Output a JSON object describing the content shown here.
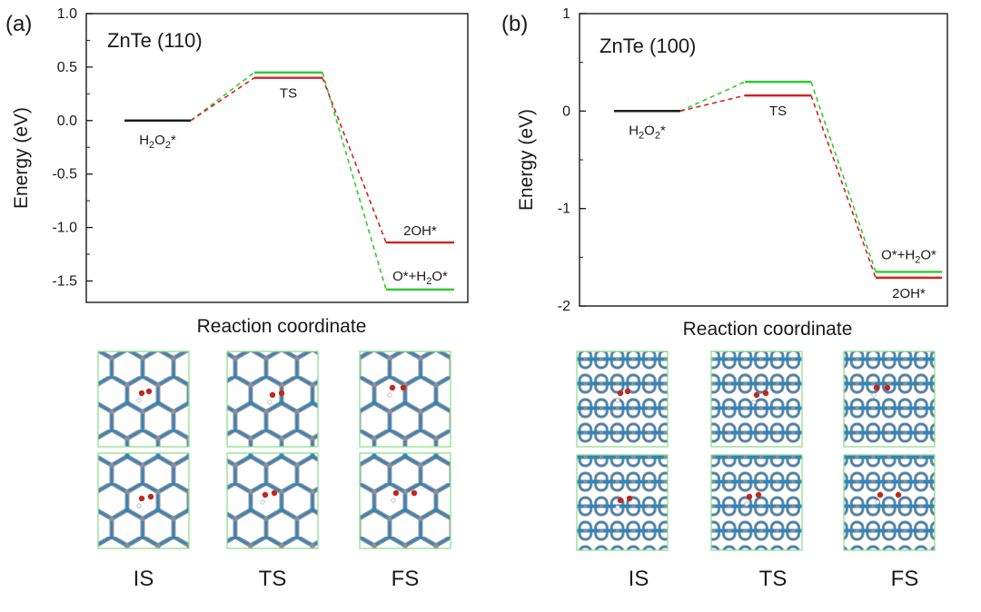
{
  "colors": {
    "green": "#2ecc2e",
    "red": "#d62020",
    "black": "#1a1a1a",
    "atom_blue": "#2f86b8",
    "atom_grey": "#8d8d9c",
    "frame_green": "#8fe08f",
    "oxygen_red": "#c0281e"
  },
  "panels": [
    {
      "letter": "(a)",
      "title": "ZnTe (110)",
      "xlabel": "Reaction coordinate",
      "ylabel": "Energy (eV)",
      "ylim": [
        -1.7,
        1.0
      ],
      "yticks": [
        "1.0",
        "0.5",
        "0.0",
        "-0.5",
        "-1.0",
        "-1.5"
      ],
      "ytick_values": [
        1.0,
        0.5,
        0.0,
        -0.5,
        -1.0,
        -1.5
      ],
      "levels": [
        {
          "label_main": "H",
          "sub1": "2",
          "mid": "O",
          "sub2": "2",
          "tail": "*",
          "value": 0.0
        },
        {
          "label": "TS",
          "value_green": 0.45,
          "value_red": 0.4
        },
        {
          "label": "2OH*",
          "value": -1.14,
          "series": "red"
        },
        {
          "label_main": "O*+H",
          "sub1": "2",
          "tail": "O*",
          "value": -1.58,
          "series": "green"
        }
      ],
      "snapshot_labels": [
        "IS",
        "TS",
        "FS"
      ],
      "lattice": "hex"
    },
    {
      "letter": "(b)",
      "title": "ZnTe (100)",
      "xlabel": "Reaction coordinate",
      "ylabel": "Energy (eV)",
      "ylim": [
        -2,
        1
      ],
      "yticks": [
        "1",
        "0",
        "-1",
        "-2"
      ],
      "ytick_values": [
        1,
        0,
        -1,
        -2
      ],
      "levels": [
        {
          "label_main": "H",
          "sub1": "2",
          "mid": "O",
          "sub2": "2",
          "tail": "*",
          "value": 0.0
        },
        {
          "label": "TS",
          "value_green": 0.3,
          "value_red": 0.16
        },
        {
          "label_main": "O*+H",
          "sub1": "2",
          "tail": "O*",
          "value": -1.65,
          "series": "green"
        },
        {
          "label": "2OH*",
          "value": -1.71,
          "series": "red"
        }
      ],
      "snapshot_labels": [
        "IS",
        "TS",
        "FS"
      ],
      "lattice": "rect"
    }
  ],
  "chart_data": [
    {
      "type": "line",
      "title": "ZnTe (110)",
      "xlabel": "Reaction coordinate",
      "ylabel": "Energy (eV)",
      "ylim": [
        -1.7,
        1.0
      ],
      "categories": [
        "H2O2*",
        "TS",
        "FS"
      ],
      "series": [
        {
          "values": [
            0.0,
            0.45,
            -1.58
          ],
          "color": "green",
          "final_state": "O*+H2O*"
        },
        {
          "values": [
            0.0,
            0.4,
            -1.14
          ],
          "color": "red",
          "final_state": "2OH*"
        }
      ]
    },
    {
      "type": "line",
      "title": "ZnTe (100)",
      "xlabel": "Reaction coordinate",
      "ylabel": "Energy (eV)",
      "ylim": [
        -2,
        1
      ],
      "categories": [
        "H2O2*",
        "TS",
        "FS"
      ],
      "series": [
        {
          "values": [
            0.0,
            0.3,
            -1.65
          ],
          "color": "green",
          "final_state": "O*+H2O*"
        },
        {
          "values": [
            0.0,
            0.16,
            -1.71
          ],
          "color": "red",
          "final_state": "2OH*"
        }
      ]
    }
  ]
}
